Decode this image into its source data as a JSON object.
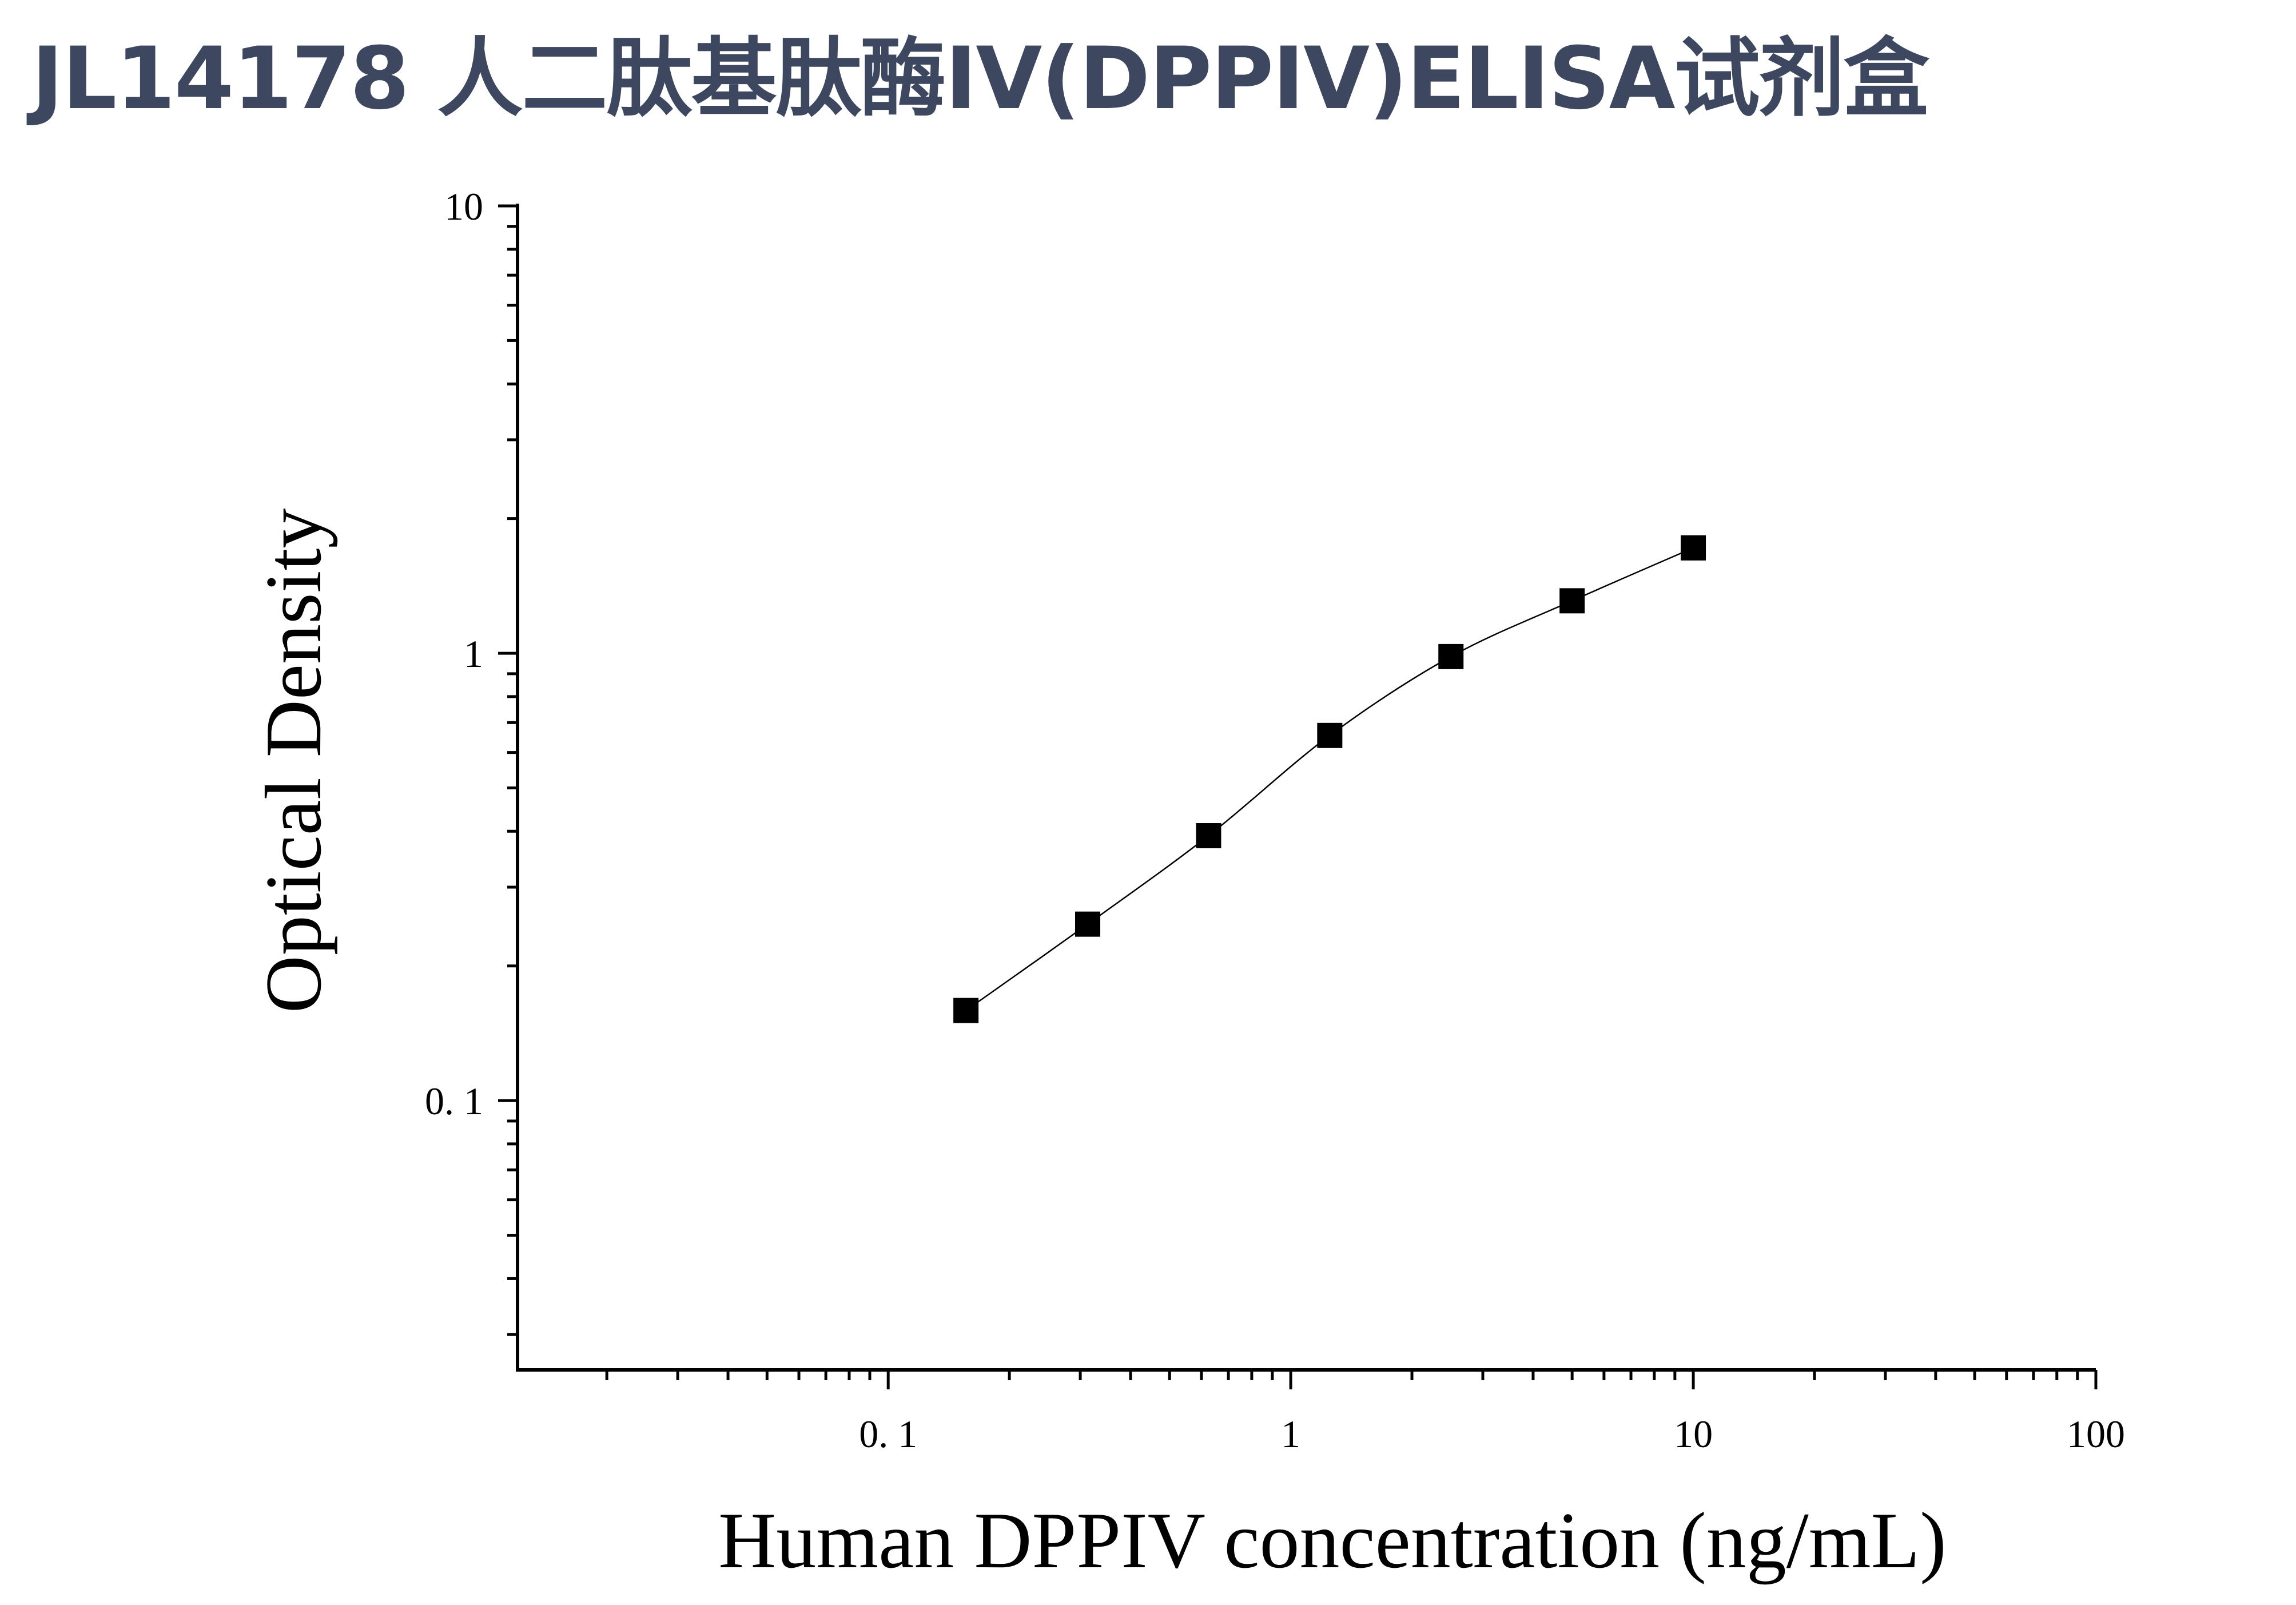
{
  "page": {
    "title": "JL14178 人二肽基肽酶IV(DPPIV)ELISA试剂盒"
  },
  "chart_data": {
    "type": "scatter",
    "title": "",
    "xlabel": "Human DPPIV concentration (ng/mL)",
    "ylabel": "Optical Density",
    "x_scale": "log",
    "y_scale": "log",
    "xlim": [
      0.012,
      100
    ],
    "ylim": [
      0.025,
      10
    ],
    "x_ticks": [
      {
        "value": 0.1,
        "label": "0. 1"
      },
      {
        "value": 1,
        "label": "1"
      },
      {
        "value": 10,
        "label": "10"
      },
      {
        "value": 100,
        "label": "100"
      }
    ],
    "y_ticks": [
      {
        "value": 0.1,
        "label": "0. 1"
      },
      {
        "value": 1,
        "label": "1"
      },
      {
        "value": 10,
        "label": "10"
      }
    ],
    "grid": false,
    "legend": "none",
    "marker": "square",
    "color": "#000000",
    "fit_line": true,
    "x": [
      0.156,
      0.313,
      0.625,
      1.25,
      2.5,
      5,
      10
    ],
    "y": [
      0.159,
      0.248,
      0.391,
      0.655,
      0.983,
      1.31,
      1.72
    ]
  }
}
